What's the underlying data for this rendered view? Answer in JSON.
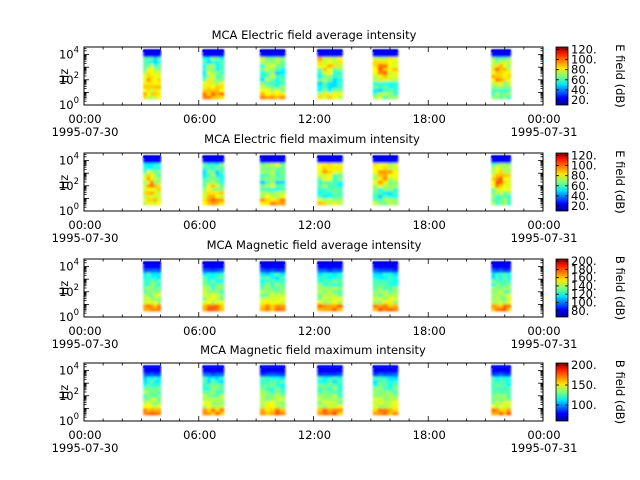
{
  "chart_data": [
    {
      "type": "heatmap",
      "title": "MCA  Electric field average intensity",
      "ylabel": "Hz",
      "colorbar_label": "E field (dB)",
      "colorbar_ticks": [
        20,
        40,
        60,
        80,
        100,
        120
      ],
      "colorbar_tick_labels": [
        "20.",
        "40.",
        "60.",
        "80.",
        "100.",
        "120."
      ],
      "clim": [
        10,
        125
      ],
      "scheme": "electric",
      "top_color": "#0000e0"
    },
    {
      "type": "heatmap",
      "title": "MCA  Electric field maximum intensity",
      "ylabel": "Hz",
      "colorbar_label": "E field (dB)",
      "colorbar_ticks": [
        20,
        40,
        60,
        80,
        100,
        120
      ],
      "colorbar_tick_labels": [
        "20.",
        "40.",
        "60.",
        "80.",
        "100.",
        "120."
      ],
      "clim": [
        10,
        125
      ],
      "scheme": "electric",
      "top_color": "#0000e0"
    },
    {
      "type": "heatmap",
      "title": "MCA  Magnetic field average intensity",
      "ylabel": "Hz",
      "colorbar_label": "B field (dB)",
      "colorbar_ticks": [
        80,
        100,
        120,
        140,
        160,
        180,
        200
      ],
      "colorbar_tick_labels": [
        "80.",
        "100.",
        "120.",
        "140.",
        "160.",
        "180.",
        "200."
      ],
      "clim": [
        65,
        205
      ],
      "scheme": "magnetic",
      "top_color": "#0000d8"
    },
    {
      "type": "heatmap",
      "title": "MCA  Magnetic field maximum intensity",
      "ylabel": "Hz",
      "colorbar_label": "B field (dB)",
      "colorbar_ticks": [
        100,
        150,
        200
      ],
      "colorbar_tick_labels": [
        "100.",
        "150.",
        "200."
      ],
      "clim": [
        60,
        205
      ],
      "scheme": "magnetic",
      "top_color": "#0010f0"
    }
  ],
  "shared_axes": {
    "x_tick_labels": [
      "00:00",
      "06:00",
      "12:00",
      "18:00",
      "00:00"
    ],
    "x_date_labels": [
      "1995-07-30",
      "1995-07-31"
    ],
    "x_range_hours": [
      0,
      24
    ],
    "x_tick_hours": [
      0,
      6,
      12,
      18,
      24
    ],
    "y_tick_labels": [
      {
        "base": "10",
        "exp": "0"
      },
      {
        "base": "10",
        "exp": "2"
      },
      {
        "base": "10",
        "exp": "4"
      }
    ],
    "y_range_log10": [
      0,
      4.6
    ],
    "y_data_log10": [
      0.5,
      4.4
    ],
    "data_blocks_hours": [
      [
        3.1,
        4.0
      ],
      [
        6.2,
        7.3
      ],
      [
        9.2,
        10.5
      ],
      [
        12.2,
        13.5
      ],
      [
        15.1,
        16.4
      ],
      [
        21.3,
        22.3
      ]
    ]
  }
}
